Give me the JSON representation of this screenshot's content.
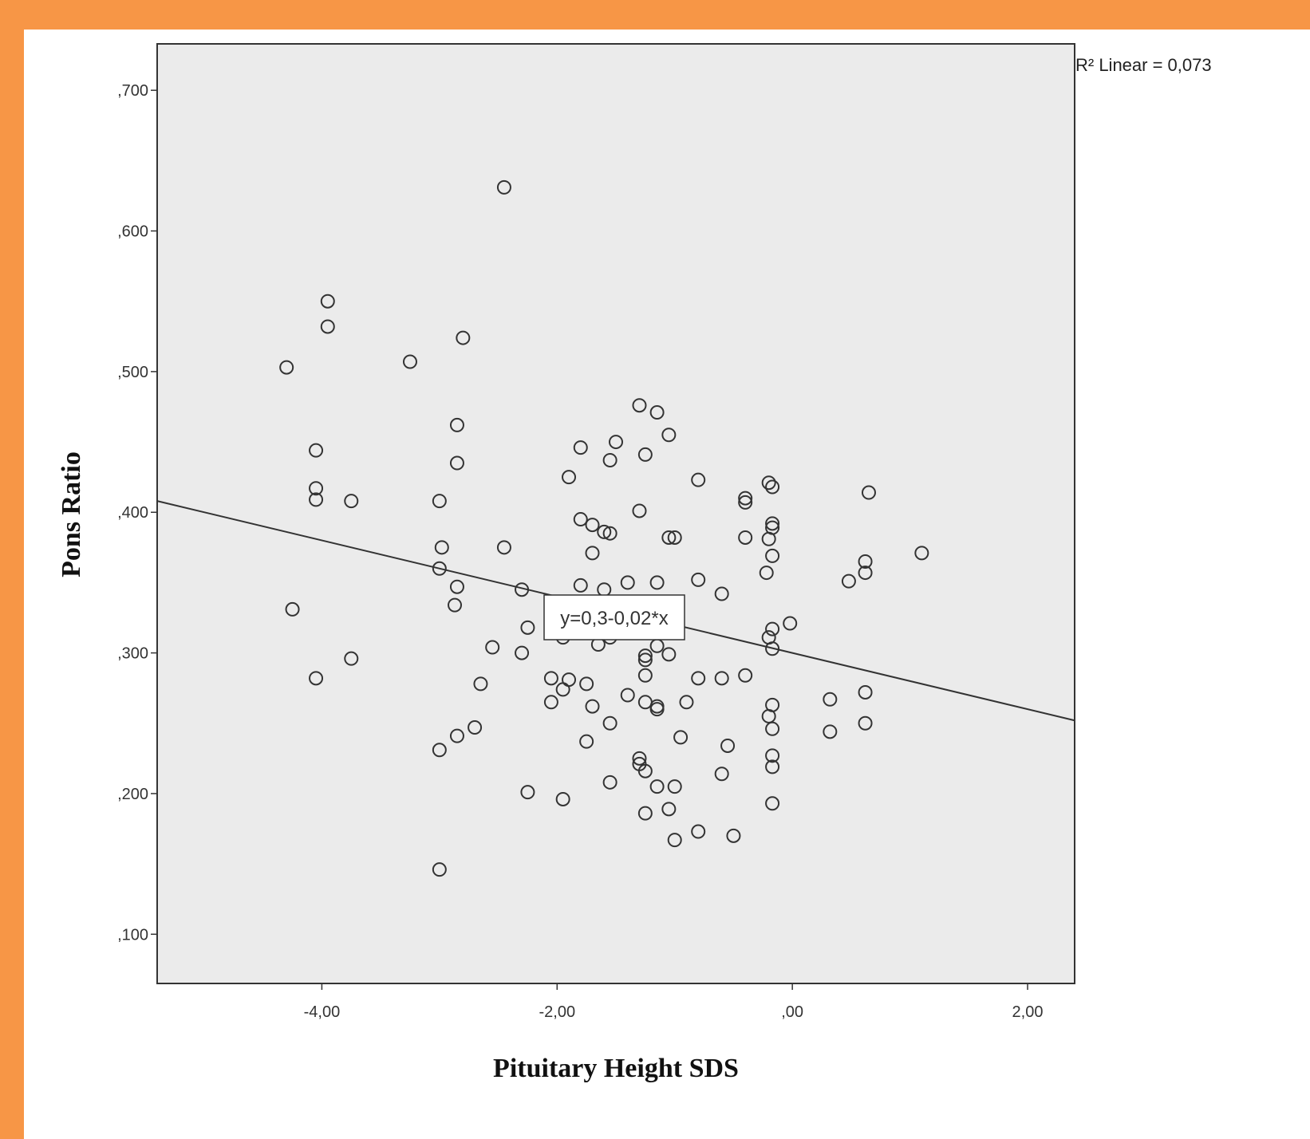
{
  "chart_data": {
    "type": "scatter",
    "title": "",
    "xlabel": "Pituitary Height SDS",
    "ylabel": "Pons Ratio",
    "xlim": [
      -5.4,
      2.4
    ],
    "ylim": [
      0.065,
      0.733
    ],
    "x_ticks": [
      {
        "value": -4,
        "label": "-4,00"
      },
      {
        "value": -2,
        "label": "-2,00"
      },
      {
        "value": 0,
        "label": ",00"
      },
      {
        "value": 2,
        "label": "2,00"
      }
    ],
    "y_ticks": [
      {
        "value": 0.1,
        "label": ",100"
      },
      {
        "value": 0.2,
        "label": ",200"
      },
      {
        "value": 0.3,
        "label": ",300"
      },
      {
        "value": 0.4,
        "label": ",400"
      },
      {
        "value": 0.5,
        "label": ",500"
      },
      {
        "value": 0.6,
        "label": ",600"
      },
      {
        "value": 0.7,
        "label": ",700"
      }
    ],
    "grid": false,
    "fit_line": {
      "intercept": 0.3,
      "slope": -0.02,
      "label": "y=0,3-0,02*x"
    },
    "r2_label": "R² Linear = 0,073",
    "points": [
      {
        "x": -2.45,
        "y": 0.631
      },
      {
        "x": -3.95,
        "y": 0.55
      },
      {
        "x": -3.95,
        "y": 0.532
      },
      {
        "x": -2.8,
        "y": 0.524
      },
      {
        "x": -4.3,
        "y": 0.503
      },
      {
        "x": -3.25,
        "y": 0.507
      },
      {
        "x": -2.85,
        "y": 0.462
      },
      {
        "x": -2.85,
        "y": 0.435
      },
      {
        "x": -4.05,
        "y": 0.444
      },
      {
        "x": -4.05,
        "y": 0.417
      },
      {
        "x": -4.05,
        "y": 0.409
      },
      {
        "x": -3.75,
        "y": 0.408
      },
      {
        "x": -3.0,
        "y": 0.408
      },
      {
        "x": -2.98,
        "y": 0.375
      },
      {
        "x": -3.0,
        "y": 0.36
      },
      {
        "x": -2.85,
        "y": 0.347
      },
      {
        "x": -2.87,
        "y": 0.334
      },
      {
        "x": -4.25,
        "y": 0.331
      },
      {
        "x": -3.75,
        "y": 0.296
      },
      {
        "x": -4.05,
        "y": 0.282
      },
      {
        "x": -1.3,
        "y": 0.476
      },
      {
        "x": -1.15,
        "y": 0.471
      },
      {
        "x": -1.05,
        "y": 0.455
      },
      {
        "x": -1.5,
        "y": 0.45
      },
      {
        "x": -1.8,
        "y": 0.446
      },
      {
        "x": -1.25,
        "y": 0.441
      },
      {
        "x": -1.55,
        "y": 0.437
      },
      {
        "x": -1.9,
        "y": 0.425
      },
      {
        "x": -0.8,
        "y": 0.423
      },
      {
        "x": -0.4,
        "y": 0.41
      },
      {
        "x": -0.4,
        "y": 0.407
      },
      {
        "x": -0.2,
        "y": 0.421
      },
      {
        "x": -0.17,
        "y": 0.418
      },
      {
        "x": 0.65,
        "y": 0.414
      },
      {
        "x": -1.3,
        "y": 0.401
      },
      {
        "x": -1.8,
        "y": 0.395
      },
      {
        "x": -1.7,
        "y": 0.391
      },
      {
        "x": -1.6,
        "y": 0.386
      },
      {
        "x": -1.55,
        "y": 0.385
      },
      {
        "x": -0.17,
        "y": 0.392
      },
      {
        "x": -0.17,
        "y": 0.389
      },
      {
        "x": -1.05,
        "y": 0.382
      },
      {
        "x": -1.0,
        "y": 0.382
      },
      {
        "x": -0.4,
        "y": 0.382
      },
      {
        "x": -0.2,
        "y": 0.381
      },
      {
        "x": -2.45,
        "y": 0.375
      },
      {
        "x": -1.7,
        "y": 0.371
      },
      {
        "x": -0.17,
        "y": 0.369
      },
      {
        "x": 1.1,
        "y": 0.371
      },
      {
        "x": 0.62,
        "y": 0.365
      },
      {
        "x": 0.62,
        "y": 0.357
      },
      {
        "x": -0.22,
        "y": 0.357
      },
      {
        "x": 0.48,
        "y": 0.351
      },
      {
        "x": -0.8,
        "y": 0.352
      },
      {
        "x": -1.4,
        "y": 0.35
      },
      {
        "x": -1.15,
        "y": 0.35
      },
      {
        "x": -1.8,
        "y": 0.348
      },
      {
        "x": -1.6,
        "y": 0.345
      },
      {
        "x": -2.3,
        "y": 0.345
      },
      {
        "x": -0.6,
        "y": 0.342
      },
      {
        "x": -0.02,
        "y": 0.321
      },
      {
        "x": -2.25,
        "y": 0.318
      },
      {
        "x": -0.17,
        "y": 0.317
      },
      {
        "x": -0.2,
        "y": 0.311
      },
      {
        "x": -1.95,
        "y": 0.311
      },
      {
        "x": -1.55,
        "y": 0.311
      },
      {
        "x": -1.65,
        "y": 0.306
      },
      {
        "x": -1.15,
        "y": 0.305
      },
      {
        "x": -0.17,
        "y": 0.303
      },
      {
        "x": -2.55,
        "y": 0.304
      },
      {
        "x": -2.3,
        "y": 0.3
      },
      {
        "x": -1.05,
        "y": 0.299
      },
      {
        "x": -1.25,
        "y": 0.298
      },
      {
        "x": -1.25,
        "y": 0.295
      },
      {
        "x": -1.25,
        "y": 0.284
      },
      {
        "x": -0.4,
        "y": 0.284
      },
      {
        "x": -2.05,
        "y": 0.282
      },
      {
        "x": -0.8,
        "y": 0.282
      },
      {
        "x": -0.6,
        "y": 0.282
      },
      {
        "x": -1.9,
        "y": 0.281
      },
      {
        "x": -1.75,
        "y": 0.278
      },
      {
        "x": -2.65,
        "y": 0.278
      },
      {
        "x": -1.95,
        "y": 0.274
      },
      {
        "x": 0.62,
        "y": 0.272
      },
      {
        "x": -1.4,
        "y": 0.27
      },
      {
        "x": 0.32,
        "y": 0.267
      },
      {
        "x": -2.05,
        "y": 0.265
      },
      {
        "x": -1.25,
        "y": 0.265
      },
      {
        "x": -0.9,
        "y": 0.265
      },
      {
        "x": -0.17,
        "y": 0.263
      },
      {
        "x": -1.7,
        "y": 0.262
      },
      {
        "x": -1.15,
        "y": 0.262
      },
      {
        "x": -1.15,
        "y": 0.26
      },
      {
        "x": -0.2,
        "y": 0.255
      },
      {
        "x": 0.62,
        "y": 0.25
      },
      {
        "x": -1.55,
        "y": 0.25
      },
      {
        "x": -2.7,
        "y": 0.247
      },
      {
        "x": -0.17,
        "y": 0.246
      },
      {
        "x": 0.32,
        "y": 0.244
      },
      {
        "x": -2.85,
        "y": 0.241
      },
      {
        "x": -0.95,
        "y": 0.24
      },
      {
        "x": -1.75,
        "y": 0.237
      },
      {
        "x": -0.55,
        "y": 0.234
      },
      {
        "x": -3.0,
        "y": 0.231
      },
      {
        "x": -0.17,
        "y": 0.227
      },
      {
        "x": -1.3,
        "y": 0.225
      },
      {
        "x": -1.3,
        "y": 0.221
      },
      {
        "x": -0.17,
        "y": 0.219
      },
      {
        "x": -1.25,
        "y": 0.216
      },
      {
        "x": -0.6,
        "y": 0.214
      },
      {
        "x": -1.55,
        "y": 0.208
      },
      {
        "x": -1.15,
        "y": 0.205
      },
      {
        "x": -1.0,
        "y": 0.205
      },
      {
        "x": -2.25,
        "y": 0.201
      },
      {
        "x": -1.95,
        "y": 0.196
      },
      {
        "x": -0.17,
        "y": 0.193
      },
      {
        "x": -1.05,
        "y": 0.189
      },
      {
        "x": -1.25,
        "y": 0.186
      },
      {
        "x": -0.8,
        "y": 0.173
      },
      {
        "x": -0.5,
        "y": 0.17
      },
      {
        "x": -1.0,
        "y": 0.167
      },
      {
        "x": -3.0,
        "y": 0.146
      }
    ]
  }
}
